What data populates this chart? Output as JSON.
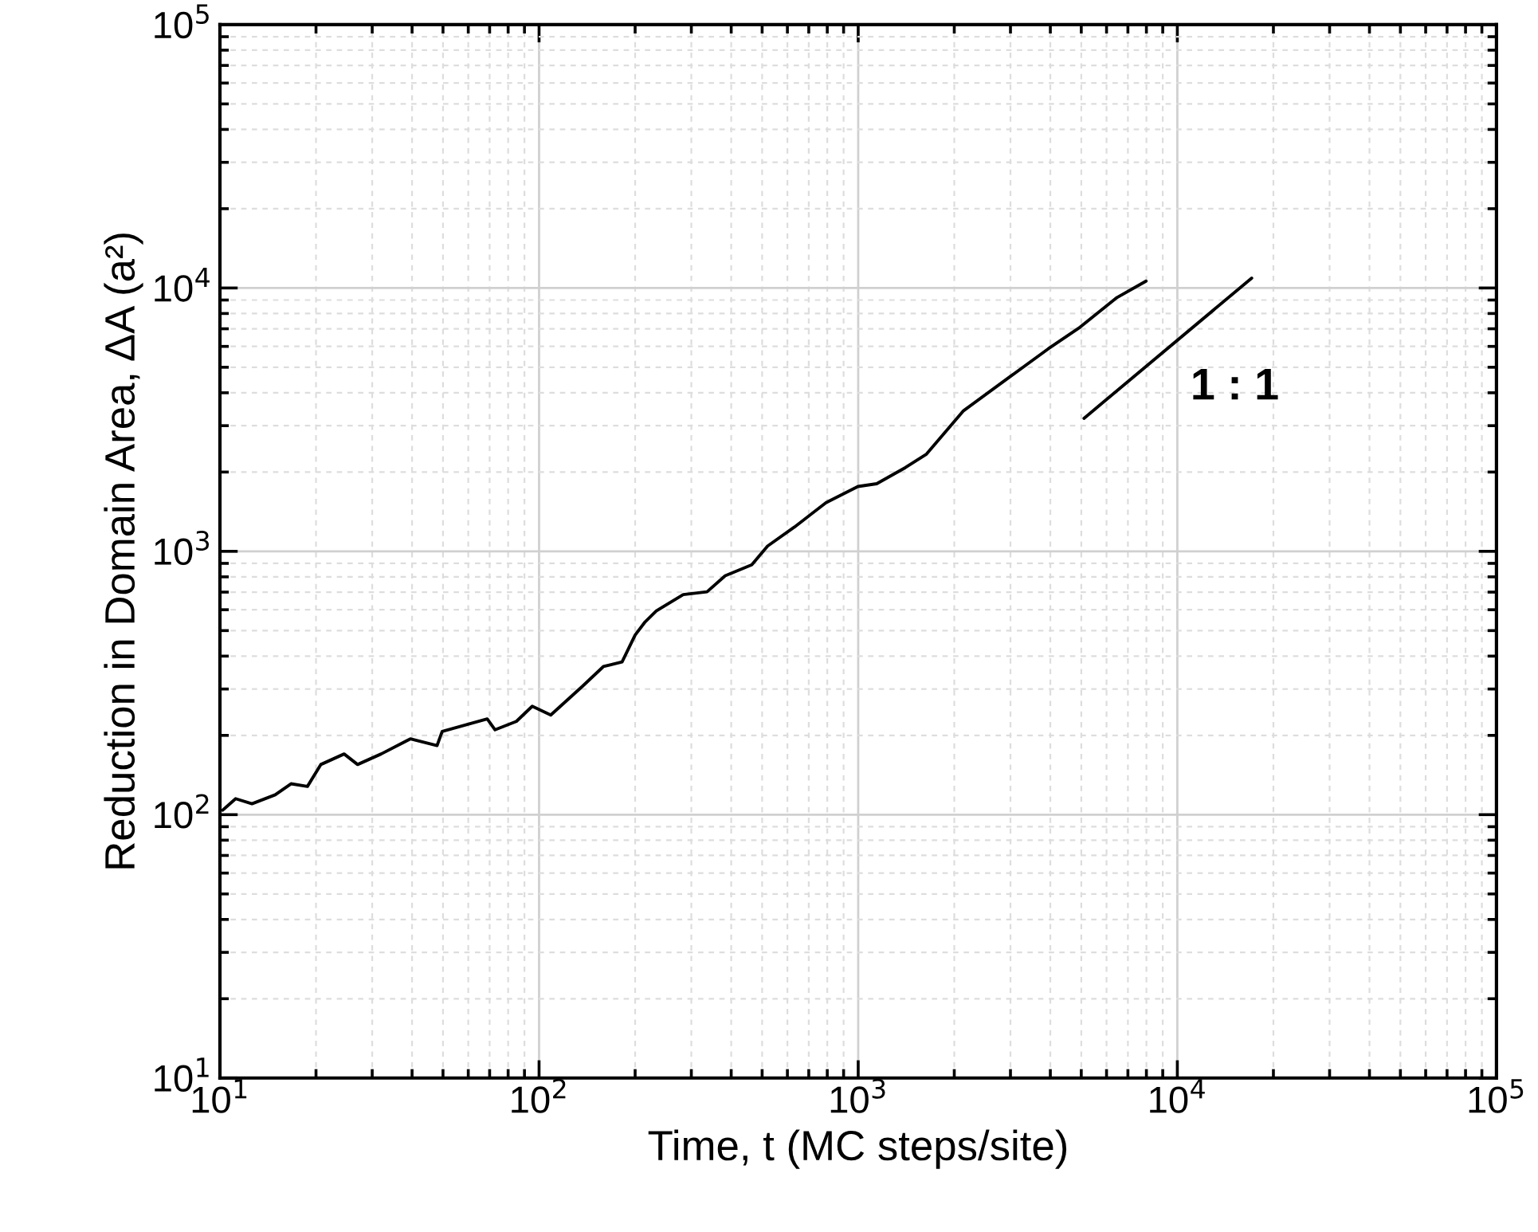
{
  "chart_data": {
    "type": "line",
    "xlabel": "Time, t (MC steps/site)",
    "ylabel": "Reduction in Domain Area, ΔA (a²)",
    "log": "xy",
    "grid": true,
    "legend": false,
    "marker": "none",
    "line_style": "solid",
    "xlim": [
      10,
      100000
    ],
    "ylim": [
      10,
      100000
    ],
    "xticks": [
      {
        "value": 10,
        "label": "10$^{1}$"
      },
      {
        "value": 100,
        "label": "10$^{2}$"
      },
      {
        "value": 1000,
        "label": "10$^{3}$"
      },
      {
        "value": 10000,
        "label": "10$^{4}$"
      },
      {
        "value": 100000,
        "label": "10$^{5}$"
      }
    ],
    "yticks": [
      {
        "value": 10,
        "label": "10$^{1}$"
      },
      {
        "value": 100,
        "label": "10$^{2}$"
      },
      {
        "value": 1000,
        "label": "10$^{3}$"
      },
      {
        "value": 10000,
        "label": "10$^{4}$"
      },
      {
        "value": 100000,
        "label": "10$^{5}$"
      }
    ],
    "series": [
      {
        "color": "#000000",
        "x": [
          10.2,
          11.2,
          12.6,
          14.9,
          16.7,
          18.8,
          20.7,
          24.5,
          27.0,
          32.0,
          39.5,
          47.9,
          49.7,
          68.8,
          72.8,
          84.9,
          95.2,
          108.8,
          136.7,
          159,
          182,
          200,
          215,
          233,
          283,
          336,
          383,
          464,
          520,
          631,
          793,
          998,
          1143,
          1406,
          1637,
          2139,
          3015,
          3940,
          4957,
          6471,
          7980
        ],
        "values": [
          104,
          115,
          110,
          119,
          131,
          128,
          155,
          170,
          155,
          170,
          194,
          183,
          207,
          231,
          210,
          226,
          258,
          239,
          307,
          365,
          380,
          481,
          540,
          594,
          685,
          702,
          808,
          889,
          1047,
          1236,
          1531,
          1763,
          1806,
          2080,
          2340,
          3420,
          4637,
          5875,
          7100,
          9200,
          10620
        ]
      },
      {
        "color": "#000000",
        "x": [
          5100,
          17100
        ],
        "values": [
          3200,
          10900
        ]
      }
    ],
    "annotations": [
      "1 : 1"
    ]
  }
}
